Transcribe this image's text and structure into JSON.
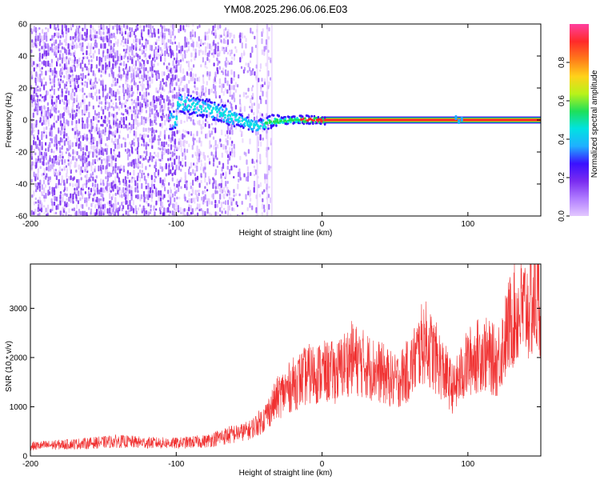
{
  "title": "YM08.2025.296.06.06.E03",
  "chart_data": [
    {
      "type": "heatmap",
      "xlabel": "Height of straight line (km)",
      "ylabel": "Frequency (Hz)",
      "xlim": [
        -200,
        150
      ],
      "ylim": [
        -60,
        60
      ],
      "xticks": [
        -200,
        -100,
        0,
        100
      ],
      "yticks": [
        60,
        40,
        20,
        0,
        -20,
        -40,
        -60
      ],
      "colorbar": {
        "label": "Normalized spectral amplitude",
        "range": [
          0,
          1
        ],
        "ticks": [
          0.0,
          0.2,
          0.4,
          0.6,
          0.8
        ]
      },
      "ridge": {
        "x": [
          -100,
          -90,
          -80,
          -70,
          -60,
          -50,
          -45,
          -40,
          -35,
          -30,
          -20,
          -10,
          0,
          50,
          90,
          100,
          150
        ],
        "y": [
          12,
          10,
          8,
          5,
          2,
          -2,
          -3,
          -2,
          0,
          0,
          1,
          1,
          0.5,
          0.5,
          0.5,
          0.5,
          0.5
        ]
      },
      "colormap": [
        "#e3c8ff",
        "#b07cff",
        "#7a2cf0",
        "#3a10ff",
        "#1fb0ff",
        "#00e2e2",
        "#1ee05a",
        "#b8f21a",
        "#ffd21a",
        "#ff7a1a",
        "#ff2a2a",
        "#ff3f9f"
      ]
    },
    {
      "type": "line",
      "xlabel": "Height of straight line (km)",
      "ylabel": "SNR (10 * v/v)",
      "xlim": [
        -200,
        150
      ],
      "ylim": [
        0,
        3900
      ],
      "xticks": [
        -200,
        -100,
        0,
        100
      ],
      "yticks": [
        0,
        1000,
        2000,
        3000
      ],
      "line_color": "#f03030",
      "series": [
        {
          "x": [
            -200,
            -180,
            -160,
            -140,
            -120,
            -100,
            -80,
            -70,
            -60,
            -50,
            -40,
            -30,
            -20,
            -10,
            0,
            10,
            20,
            30,
            40,
            50,
            60,
            70,
            80,
            90,
            100,
            110,
            120,
            130,
            140,
            150
          ],
          "y": [
            200,
            230,
            260,
            300,
            270,
            260,
            300,
            380,
            450,
            520,
            750,
            1200,
            1450,
            1650,
            1700,
            1700,
            2000,
            1850,
            1700,
            1500,
            1750,
            2350,
            1900,
            1350,
            1900,
            2100,
            1900,
            2800,
            3000,
            3200
          ]
        }
      ]
    }
  ]
}
